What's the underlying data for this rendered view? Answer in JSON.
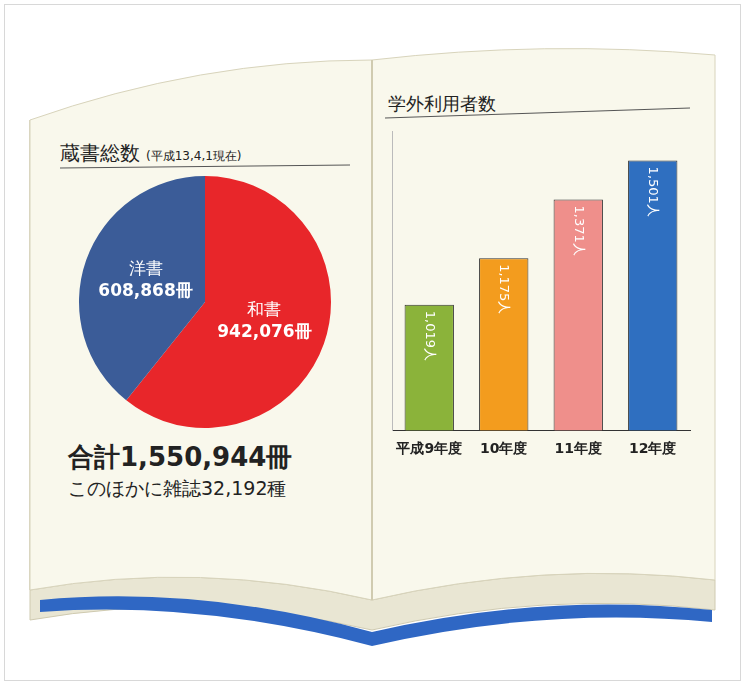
{
  "chart_data": [
    {
      "type": "pie",
      "title": "蔵書総数",
      "subtitle": "(平成13,4,1現在)",
      "categories": [
        "和書",
        "洋書"
      ],
      "values": [
        942076,
        608868
      ],
      "value_labels": [
        "942,076冊",
        "608,868冊"
      ],
      "colors": [
        "#e8262a",
        "#3b5c98"
      ],
      "data_labels": true,
      "annotations": [
        "合計1,550,944冊",
        "このほかに雑誌32,192種"
      ]
    },
    {
      "type": "bar",
      "title": "学外利用者数",
      "categories": [
        "平成9年度",
        "10年度",
        "11年度",
        "12年度"
      ],
      "values": [
        1019,
        1175,
        1371,
        1501
      ],
      "value_labels": [
        "1,019人",
        "1,175人",
        "1,371人",
        "1,501人"
      ],
      "colors": [
        "#8bb33a",
        "#f39c1e",
        "#ef8f8b",
        "#2f6fc0"
      ],
      "data_labels": true,
      "ylim": [
        600,
        1600
      ],
      "grid": false,
      "tick_labels": "x"
    }
  ]
}
